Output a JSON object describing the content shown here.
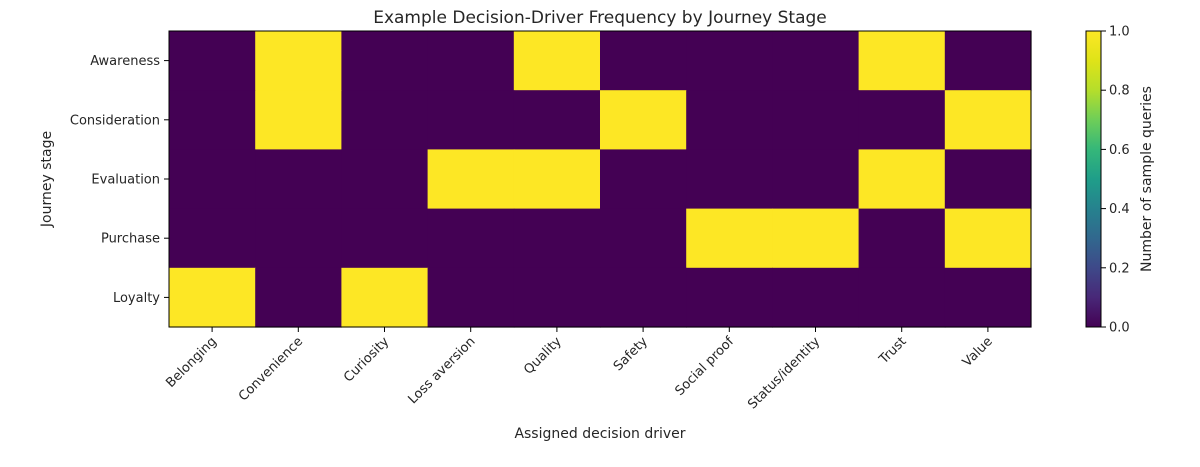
{
  "chart_data": {
    "type": "heatmap",
    "title": "Example Decision-Driver Frequency by Journey Stage",
    "xlabel": "Assigned decision driver",
    "ylabel": "Journey stage",
    "x_categories": [
      "Belonging",
      "Convenience",
      "Curiosity",
      "Loss aversion",
      "Quality",
      "Safety",
      "Social proof",
      "Status/identity",
      "Trust",
      "Value"
    ],
    "y_categories": [
      "Awareness",
      "Consideration",
      "Evaluation",
      "Purchase",
      "Loyalty"
    ],
    "values": [
      [
        0,
        1,
        0,
        0,
        1,
        0,
        0,
        0,
        1,
        0
      ],
      [
        0,
        1,
        0,
        0,
        0,
        1,
        0,
        0,
        0,
        1
      ],
      [
        0,
        0,
        0,
        1,
        1,
        0,
        0,
        0,
        1,
        0
      ],
      [
        0,
        0,
        0,
        0,
        0,
        0,
        1,
        1,
        0,
        1
      ],
      [
        1,
        0,
        1,
        0,
        0,
        0,
        0,
        0,
        0,
        0
      ]
    ],
    "colormap": "viridis",
    "low_color": "#440154",
    "high_color": "#fde725",
    "vmin": 0.0,
    "vmax": 1.0,
    "colorbar": {
      "label": "Number of sample queries",
      "ticks": [
        0.0,
        0.2,
        0.4,
        0.6,
        0.8,
        1.0
      ],
      "tick_labels": [
        "0.0",
        "0.2",
        "0.4",
        "0.6",
        "0.8",
        "1.0"
      ]
    },
    "grid": false
  }
}
